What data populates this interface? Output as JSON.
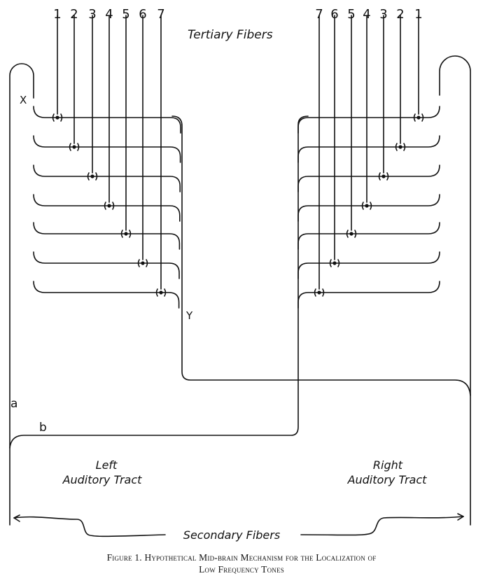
{
  "labels": {
    "tertiary": "Tertiary Fibers",
    "x": "X",
    "y": "Y",
    "a": "a",
    "b": "b",
    "left_tract_1": "Left",
    "left_tract_2": "Auditory Tract",
    "right_tract_1": "Right",
    "right_tract_2": "Auditory Tract",
    "secondary": "Secondary Fibers"
  },
  "left_numbers": [
    "1",
    "2",
    "3",
    "4",
    "5",
    "6",
    "7"
  ],
  "right_numbers": [
    "7",
    "6",
    "5",
    "4",
    "3",
    "2",
    "1"
  ],
  "caption": {
    "line1": "Figure 1. Hypothetical Mid-brain Mechanism for the Localization of",
    "line2": "Low Frequency Tones"
  }
}
